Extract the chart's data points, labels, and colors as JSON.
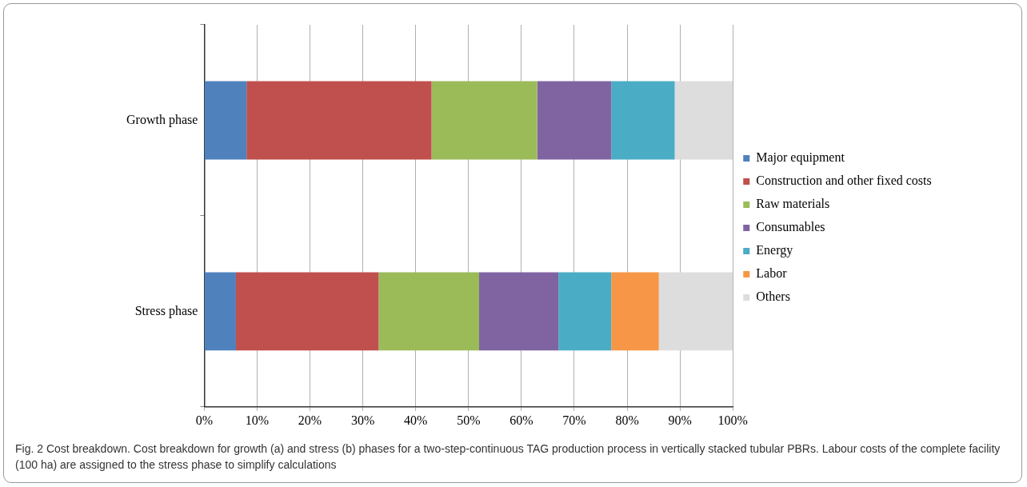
{
  "chart_data": {
    "type": "bar",
    "orientation": "horizontal",
    "stacked": true,
    "categories": [
      "Growth phase",
      "Stress phase"
    ],
    "series": [
      {
        "name": "Major equipment",
        "color": "#4f81bd",
        "values": [
          8,
          6
        ]
      },
      {
        "name": "Construction and other fixed costs",
        "color": "#c0504d",
        "values": [
          35,
          27
        ]
      },
      {
        "name": "Raw materials",
        "color": "#9bbb59",
        "values": [
          20,
          19
        ]
      },
      {
        "name": "Consumables",
        "color": "#8064a2",
        "values": [
          14,
          15
        ]
      },
      {
        "name": "Energy",
        "color": "#4bacc6",
        "values": [
          12,
          10
        ]
      },
      {
        "name": "Labor",
        "color": "#f79646",
        "values": [
          0,
          9
        ]
      },
      {
        "name": "Others",
        "color": "#dddddd",
        "values": [
          11,
          14
        ]
      }
    ],
    "xlim": [
      0,
      100
    ],
    "xticks": [
      {
        "value": 0,
        "label": "0%"
      },
      {
        "value": 10,
        "label": "10%"
      },
      {
        "value": 20,
        "label": "20%"
      },
      {
        "value": 30,
        "label": "30%"
      },
      {
        "value": 40,
        "label": "40%"
      },
      {
        "value": 50,
        "label": "50%"
      },
      {
        "value": 60,
        "label": "60%"
      },
      {
        "value": 70,
        "label": "70%"
      },
      {
        "value": 80,
        "label": "80%"
      },
      {
        "value": 90,
        "label": "90%"
      },
      {
        "value": 100,
        "label": "100%"
      }
    ],
    "grid": "x",
    "legend": "right",
    "annotations": [
      "Fig. 2 Cost breakdown. Cost breakdown for growth (a) and stress (b) phases for a two-step-continuous TAG production process in vertically stacked tubular PBRs. Labour costs of the complete facility (100 ha) are assigned to the stress phase to simplify calculations"
    ]
  }
}
